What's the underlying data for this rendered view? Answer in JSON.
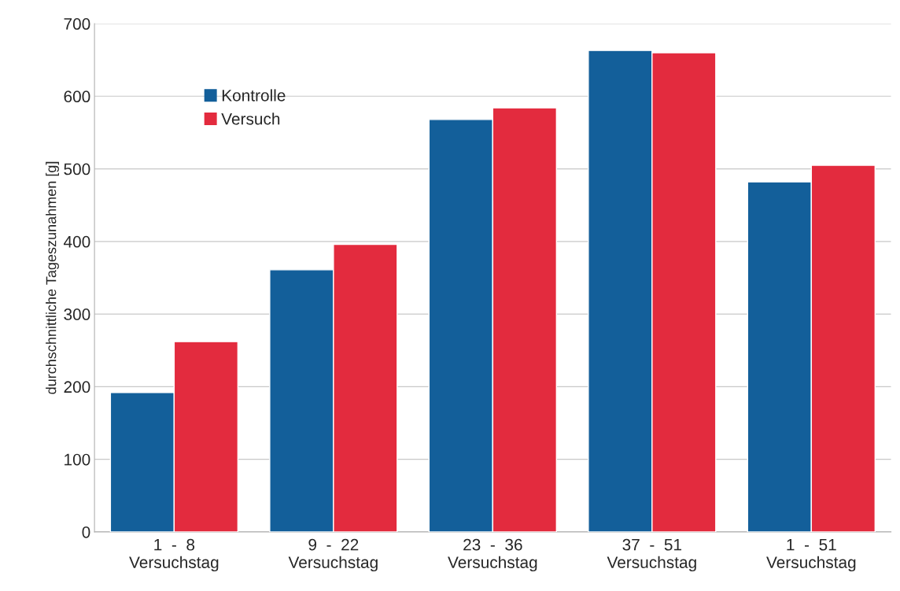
{
  "chart_data": {
    "type": "bar",
    "ylabel": "durchschnittliche Tageszunahmen [g]",
    "categories": [
      "1  -  8\nVersuchstag",
      "9  -  22\nVersuchstag",
      "23  -  36\nVersuchstag",
      "37  -  51\nVersuchstag",
      "1  -  51\nVersuchstag"
    ],
    "series": [
      {
        "name": "Kontrolle",
        "color": "#135f9a",
        "values": [
          192,
          361,
          568,
          663,
          482
        ]
      },
      {
        "name": "Versuch",
        "color": "#e32b3e",
        "values": [
          262,
          396,
          584,
          660,
          505
        ]
      }
    ],
    "ylim": [
      0,
      700
    ],
    "yticks": [
      0,
      100,
      200,
      300,
      400,
      500,
      600,
      700
    ],
    "grid": "y",
    "legend": "top left"
  }
}
